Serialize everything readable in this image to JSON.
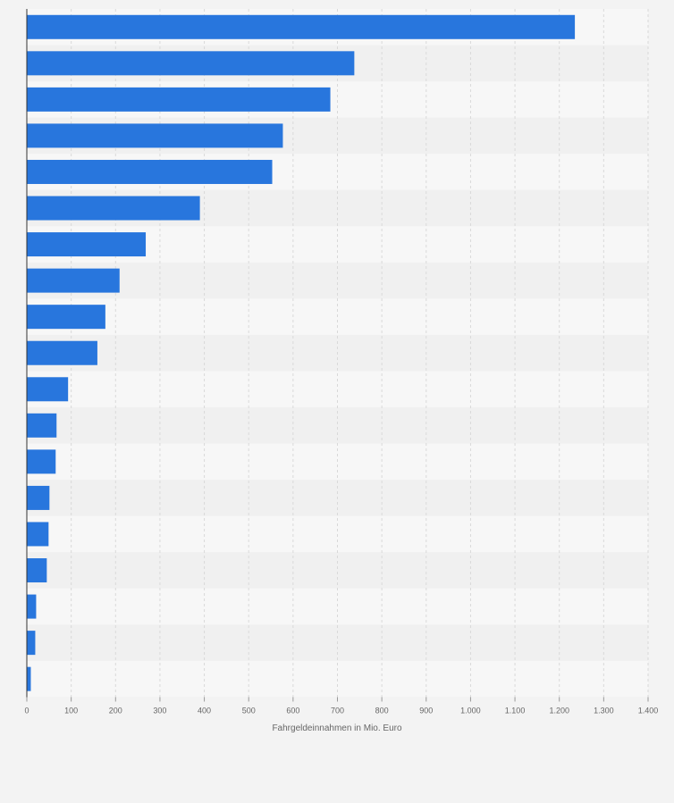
{
  "chart_data": {
    "type": "bar",
    "orientation": "horizontal",
    "values": [
      1235,
      738,
      684,
      577,
      553,
      390,
      268,
      209,
      177,
      159,
      93,
      67,
      65,
      51,
      49,
      45,
      21,
      19,
      9
    ],
    "xlabel": "Fahrgeldeinnahmen in Mio. Euro",
    "xlim": [
      0,
      1400
    ],
    "xticks": [
      0,
      100,
      200,
      300,
      400,
      500,
      600,
      700,
      800,
      900,
      1000,
      1100,
      1200,
      1300,
      1400
    ],
    "xtick_labels": [
      "0",
      "100",
      "200",
      "300",
      "400",
      "500",
      "600",
      "700",
      "800",
      "900",
      "1.000",
      "1.100",
      "1.200",
      "1.300",
      "1.400"
    ],
    "grid": true,
    "colors": {
      "bar": "#2876dd",
      "band_light": "#f7f7f7",
      "band_dark": "#f0f0f0",
      "grid": "#d9d9d9",
      "axis": "#333333",
      "tick_text": "#666666"
    }
  }
}
